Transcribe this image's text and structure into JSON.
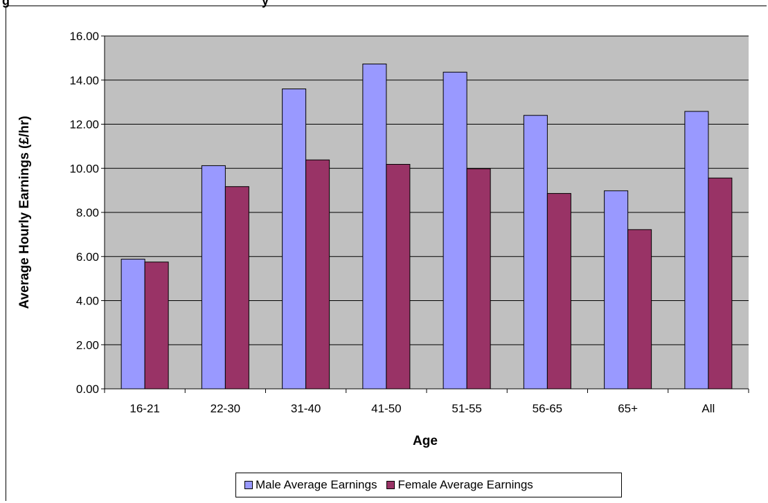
{
  "page_title": "g",
  "title_suffix": "y",
  "chart_data": {
    "type": "bar",
    "categories": [
      "16-21",
      "22-30",
      "31-40",
      "41-50",
      "51-55",
      "56-65",
      "65+",
      "All"
    ],
    "series": [
      {
        "name": "Male Average Earnings",
        "color": "#9999ff",
        "values": [
          5.88,
          10.12,
          13.6,
          14.73,
          14.36,
          12.4,
          8.98,
          12.58
        ]
      },
      {
        "name": "Female Average Earnings",
        "color": "#993366",
        "values": [
          5.75,
          9.17,
          10.38,
          10.18,
          9.98,
          8.86,
          7.22,
          9.56
        ]
      }
    ],
    "xlabel": "Age",
    "ylabel": "Average Hourly Earnings (£/hr)",
    "ylim": [
      0,
      16
    ],
    "yticks": [
      "0.00",
      "2.00",
      "4.00",
      "6.00",
      "8.00",
      "10.00",
      "12.00",
      "14.00",
      "16.00"
    ],
    "grid": true,
    "plot_background": "#c0c0c0",
    "legend_position": "bottom"
  }
}
